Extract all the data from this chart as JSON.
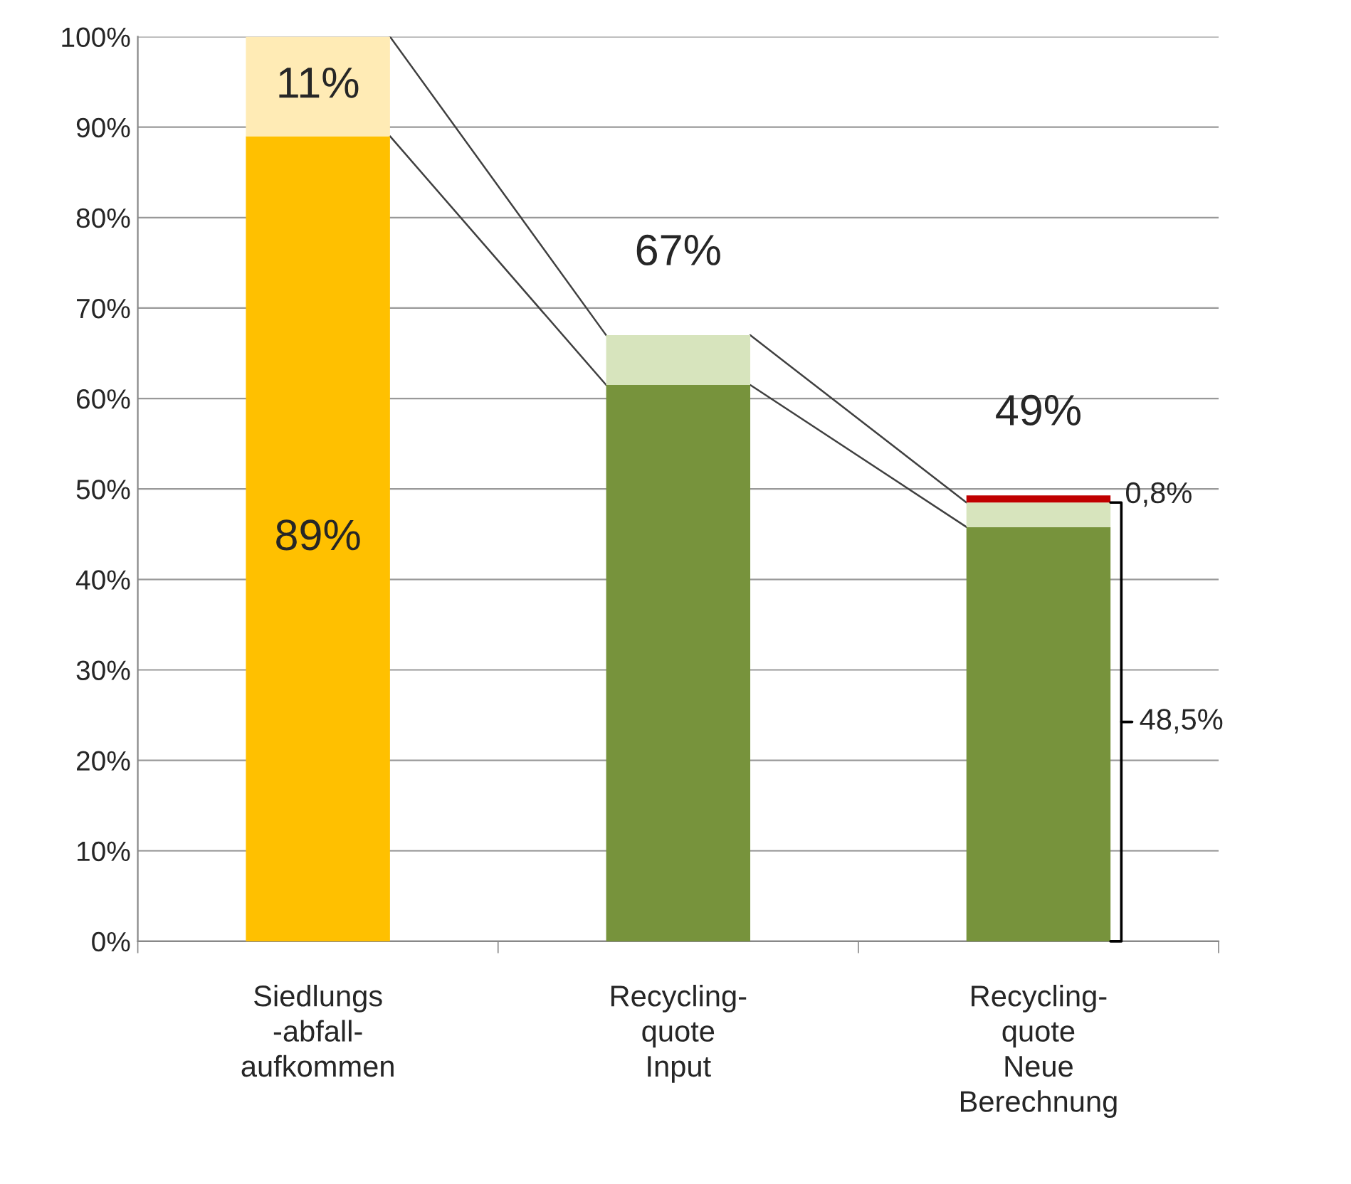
{
  "chart_data": {
    "type": "bar",
    "stacked": true,
    "categories": [
      "Siedlungs\n-abfall-\naufkommen",
      "Recycling-\nquote\nInput",
      "Recycling-\nquote\nNeue\nBerechnung"
    ],
    "series": [
      {
        "colors": [
          "#ffc000",
          "#77933c",
          "#77933c"
        ],
        "values": [
          89,
          61.5,
          45.8
        ],
        "value_labels": [
          "89%",
          null,
          null
        ]
      },
      {
        "colors": [
          "#ffebb5",
          "#d7e4bd",
          "#d7e4bd"
        ],
        "values": [
          11,
          5.5,
          2.7
        ],
        "value_labels": [
          "11%",
          null,
          null
        ]
      },
      {
        "colors": [
          "#c00000",
          "#c00000",
          "#c00000"
        ],
        "values": [
          null,
          null,
          0.8
        ]
      }
    ],
    "totals": [
      null,
      "67%",
      "49%"
    ],
    "annotations": [
      "0,8%",
      "48,5%"
    ],
    "ylim": [
      0,
      100
    ],
    "yticks": [
      {
        "value": 0,
        "label": "0%"
      },
      {
        "value": 10,
        "label": "10%"
      },
      {
        "value": 20,
        "label": "20%"
      },
      {
        "value": 30,
        "label": "30%"
      },
      {
        "value": 40,
        "label": "40%"
      },
      {
        "value": 50,
        "label": "50%"
      },
      {
        "value": 60,
        "label": "60%"
      },
      {
        "value": 70,
        "label": "70%"
      },
      {
        "value": 80,
        "label": "80%"
      },
      {
        "value": 90,
        "label": "90%"
      },
      {
        "value": 100,
        "label": "100%"
      }
    ],
    "grid": "y",
    "legend": false
  }
}
